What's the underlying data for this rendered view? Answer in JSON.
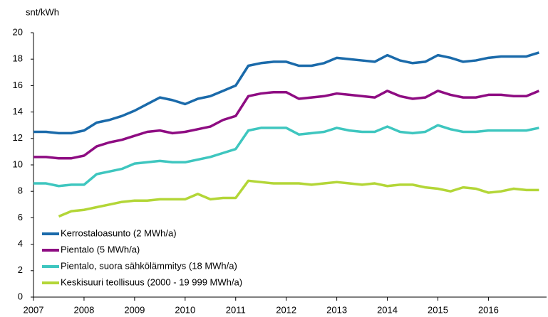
{
  "chart_data": {
    "type": "line",
    "y_label": "snt/kWh",
    "x": [
      2007,
      2007.25,
      2007.5,
      2007.75,
      2008,
      2008.25,
      2008.5,
      2008.75,
      2009,
      2009.25,
      2009.5,
      2009.75,
      2010,
      2010.25,
      2010.5,
      2010.75,
      2011,
      2011.25,
      2011.5,
      2011.75,
      2012,
      2012.25,
      2012.5,
      2012.75,
      2013,
      2013.25,
      2013.5,
      2013.75,
      2014,
      2014.25,
      2014.5,
      2014.75,
      2015,
      2015.25,
      2015.5,
      2015.75,
      2016,
      2016.25,
      2016.5,
      2016.75,
      2017
    ],
    "series": [
      {
        "name": "Kerrostaloasunto (2 MWh/a)",
        "color": "#1a6aaa",
        "values": [
          12.5,
          12.5,
          12.4,
          12.4,
          12.6,
          13.2,
          13.4,
          13.7,
          14.1,
          14.6,
          15.1,
          14.9,
          14.6,
          15.0,
          15.2,
          15.6,
          16.0,
          17.5,
          17.7,
          17.8,
          17.8,
          17.5,
          17.5,
          17.7,
          18.1,
          18.0,
          17.9,
          17.8,
          18.3,
          17.9,
          17.7,
          17.8,
          18.3,
          18.1,
          17.8,
          17.9,
          18.1,
          18.2,
          18.2,
          18.2,
          18.5
        ]
      },
      {
        "name": "Pientalo (5 MWh/a)",
        "color": "#8e0c82",
        "values": [
          10.6,
          10.6,
          10.5,
          10.5,
          10.7,
          11.4,
          11.7,
          11.9,
          12.2,
          12.5,
          12.6,
          12.4,
          12.5,
          12.7,
          12.9,
          13.4,
          13.7,
          15.2,
          15.4,
          15.5,
          15.5,
          15.0,
          15.1,
          15.2,
          15.4,
          15.3,
          15.2,
          15.1,
          15.6,
          15.2,
          15.0,
          15.1,
          15.6,
          15.3,
          15.1,
          15.1,
          15.3,
          15.3,
          15.2,
          15.2,
          15.6
        ]
      },
      {
        "name": "Pientalo, suora sähkölämmitys (18 MWh/a)",
        "color": "#3ec6bf",
        "values": [
          8.6,
          8.6,
          8.4,
          8.5,
          8.5,
          9.3,
          9.5,
          9.7,
          10.1,
          10.2,
          10.3,
          10.2,
          10.2,
          10.4,
          10.6,
          10.9,
          11.2,
          12.6,
          12.8,
          12.8,
          12.8,
          12.3,
          12.4,
          12.5,
          12.8,
          12.6,
          12.5,
          12.5,
          12.9,
          12.5,
          12.4,
          12.5,
          13.0,
          12.7,
          12.5,
          12.5,
          12.6,
          12.6,
          12.6,
          12.6,
          12.8
        ]
      },
      {
        "name": "Keskisuuri teollisuus (2000 - 19 999 MWh/a)",
        "color": "#b3d637",
        "values": [
          null,
          null,
          6.1,
          6.5,
          6.6,
          6.8,
          7.0,
          7.2,
          7.3,
          7.3,
          7.4,
          7.4,
          7.4,
          7.8,
          7.4,
          7.5,
          7.5,
          8.8,
          8.7,
          8.6,
          8.6,
          8.6,
          8.5,
          8.6,
          8.7,
          8.6,
          8.5,
          8.6,
          8.4,
          8.5,
          8.5,
          8.3,
          8.2,
          8.0,
          8.3,
          8.2,
          7.9,
          8.0,
          8.2,
          8.1,
          8.1
        ]
      }
    ],
    "xlim": [
      2007,
      2017.15
    ],
    "xticks": [
      2007,
      2008,
      2009,
      2010,
      2011,
      2012,
      2013,
      2014,
      2015,
      2016
    ],
    "ylim": [
      0,
      20
    ],
    "yticks": [
      0,
      2,
      4,
      6,
      8,
      10,
      12,
      14,
      16,
      18,
      20
    ],
    "grid": false,
    "legend": "lower left"
  }
}
